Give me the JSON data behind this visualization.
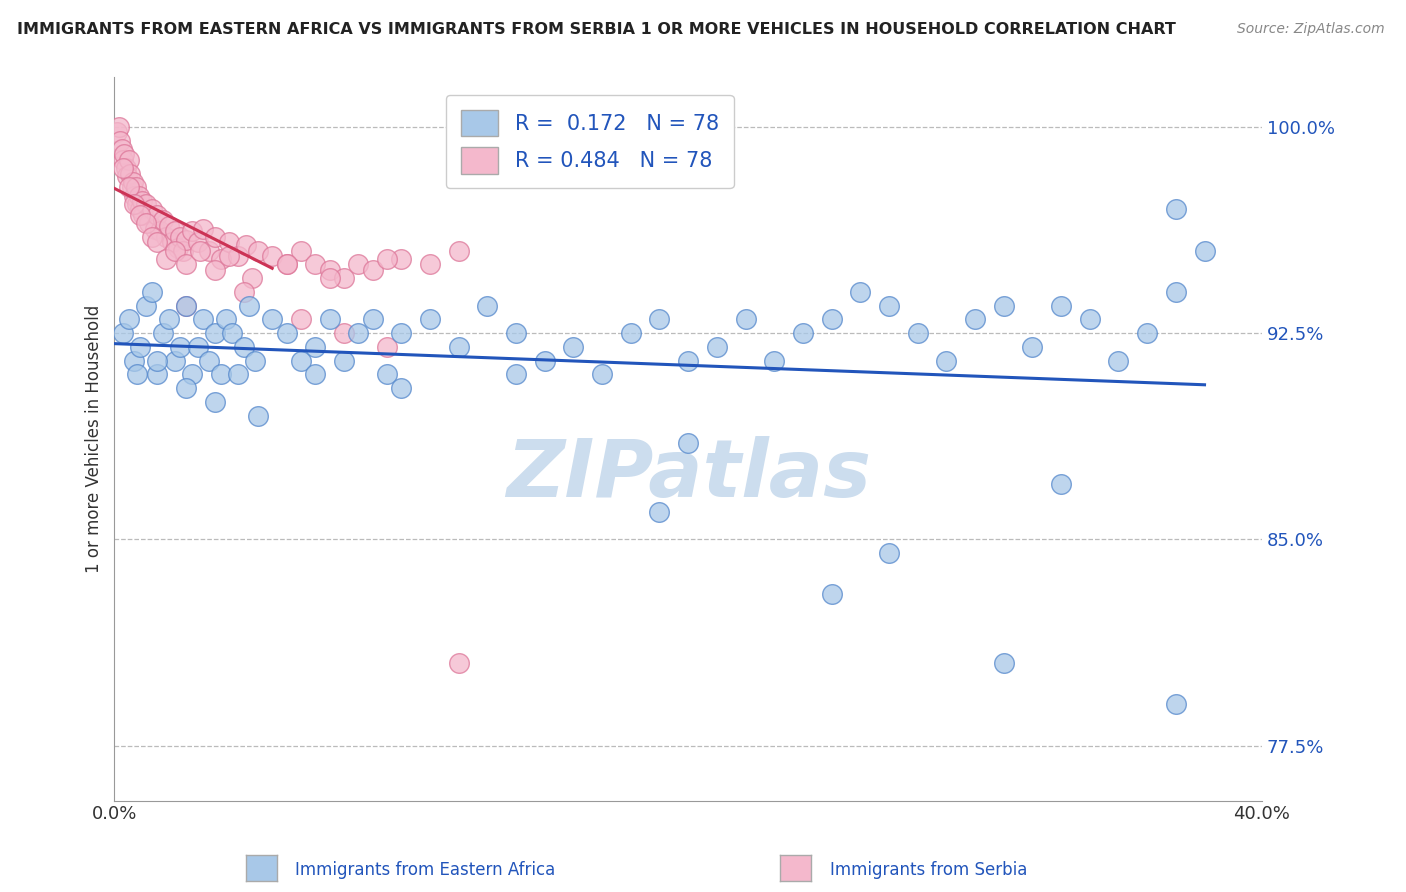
{
  "title": "IMMIGRANTS FROM EASTERN AFRICA VS IMMIGRANTS FROM SERBIA 1 OR MORE VEHICLES IN HOUSEHOLD CORRELATION CHART",
  "source": "Source: ZipAtlas.com",
  "R_blue": 0.172,
  "N_blue": 78,
  "R_pink": 0.484,
  "N_pink": 78,
  "legend_label_blue": "Immigrants from Eastern Africa",
  "legend_label_pink": "Immigrants from Serbia",
  "xmin": 0.0,
  "xmax": 40.0,
  "ymin": 75.5,
  "ymax": 101.8,
  "blue_color": "#a8c8e8",
  "blue_edge": "#5588cc",
  "pink_color": "#f4b8cc",
  "pink_edge": "#dd7799",
  "blue_line_color": "#2255bb",
  "pink_line_color": "#cc3355",
  "watermark_color": "#ccddeeff",
  "blue_x": [
    0.3,
    0.5,
    0.7,
    0.9,
    1.1,
    1.3,
    1.5,
    1.7,
    1.9,
    2.1,
    2.3,
    2.5,
    2.7,
    2.9,
    3.1,
    3.3,
    3.5,
    3.7,
    3.9,
    4.1,
    4.3,
    4.5,
    4.7,
    4.9,
    5.5,
    6.0,
    6.5,
    7.0,
    7.5,
    8.0,
    8.5,
    9.0,
    9.5,
    10.0,
    11.0,
    12.0,
    13.0,
    14.0,
    15.0,
    16.0,
    17.0,
    18.0,
    19.0,
    20.0,
    21.0,
    22.0,
    23.0,
    24.0,
    25.0,
    26.0,
    27.0,
    28.0,
    29.0,
    30.0,
    31.0,
    32.0,
    33.0,
    34.0,
    35.0,
    36.0,
    37.0,
    38.0,
    0.8,
    1.5,
    2.5,
    3.5,
    5.0,
    7.0,
    10.0,
    14.0,
    19.0,
    25.0,
    31.0,
    37.0,
    20.0,
    27.0,
    33.0,
    37.0
  ],
  "blue_y": [
    92.5,
    93.0,
    91.5,
    92.0,
    93.5,
    94.0,
    91.0,
    92.5,
    93.0,
    91.5,
    92.0,
    93.5,
    91.0,
    92.0,
    93.0,
    91.5,
    92.5,
    91.0,
    93.0,
    92.5,
    91.0,
    92.0,
    93.5,
    91.5,
    93.0,
    92.5,
    91.5,
    92.0,
    93.0,
    91.5,
    92.5,
    93.0,
    91.0,
    92.5,
    93.0,
    92.0,
    93.5,
    92.5,
    91.5,
    92.0,
    91.0,
    92.5,
    93.0,
    91.5,
    92.0,
    93.0,
    91.5,
    92.5,
    93.0,
    94.0,
    93.5,
    92.5,
    91.5,
    93.0,
    93.5,
    92.0,
    93.5,
    93.0,
    91.5,
    92.5,
    94.0,
    95.5,
    91.0,
    91.5,
    90.5,
    90.0,
    89.5,
    91.0,
    90.5,
    91.0,
    86.0,
    83.0,
    80.5,
    79.0,
    88.5,
    84.5,
    87.0,
    97.0
  ],
  "pink_x": [
    0.1,
    0.15,
    0.2,
    0.25,
    0.3,
    0.35,
    0.4,
    0.45,
    0.5,
    0.55,
    0.6,
    0.65,
    0.7,
    0.75,
    0.8,
    0.85,
    0.9,
    0.95,
    1.0,
    1.1,
    1.2,
    1.3,
    1.4,
    1.5,
    1.6,
    1.7,
    1.8,
    1.9,
    2.0,
    2.1,
    2.2,
    2.3,
    2.4,
    2.5,
    2.7,
    2.9,
    3.1,
    3.3,
    3.5,
    3.7,
    4.0,
    4.3,
    4.6,
    5.0,
    5.5,
    6.0,
    6.5,
    7.0,
    7.5,
    8.0,
    8.5,
    9.0,
    10.0,
    11.0,
    12.0,
    0.3,
    0.5,
    0.7,
    0.9,
    1.1,
    1.3,
    1.5,
    1.8,
    2.1,
    2.5,
    3.0,
    3.5,
    4.0,
    4.8,
    6.0,
    7.5,
    9.5,
    2.5,
    4.5,
    6.5,
    8.0,
    9.5,
    12.0
  ],
  "pink_y": [
    99.8,
    100.0,
    99.5,
    99.2,
    98.8,
    99.0,
    98.5,
    98.2,
    98.8,
    98.3,
    97.8,
    98.0,
    97.5,
    97.8,
    97.2,
    97.5,
    97.0,
    97.3,
    96.8,
    97.2,
    96.5,
    97.0,
    96.3,
    96.8,
    96.2,
    96.6,
    96.0,
    96.4,
    95.8,
    96.2,
    95.6,
    96.0,
    95.5,
    95.9,
    96.2,
    95.8,
    96.3,
    95.5,
    96.0,
    95.2,
    95.8,
    95.3,
    95.7,
    95.5,
    95.3,
    95.0,
    95.5,
    95.0,
    94.8,
    94.5,
    95.0,
    94.8,
    95.2,
    95.0,
    95.5,
    98.5,
    97.8,
    97.2,
    96.8,
    96.5,
    96.0,
    95.8,
    95.2,
    95.5,
    95.0,
    95.5,
    94.8,
    95.3,
    94.5,
    95.0,
    94.5,
    95.2,
    93.5,
    94.0,
    93.0,
    92.5,
    92.0,
    80.5
  ]
}
